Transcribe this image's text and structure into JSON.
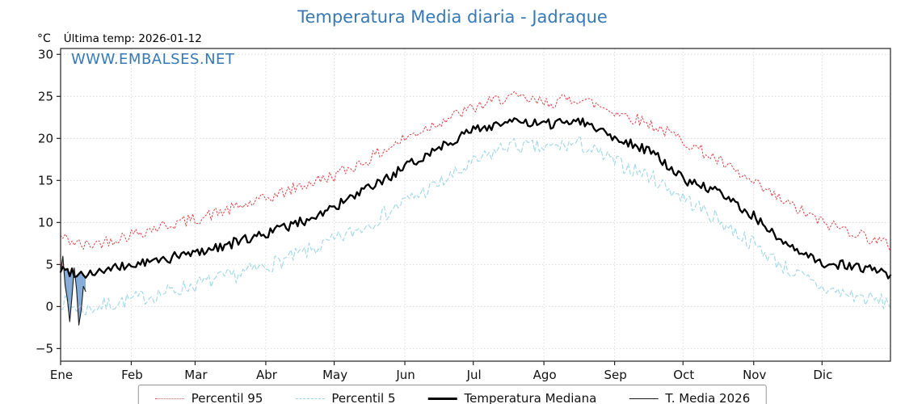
{
  "title": "Temperatura Media diaria - Jadraque",
  "subtitle": {
    "unit": "°C",
    "last_temp": "Última temp: 2026-01-12"
  },
  "watermark": "WWW.EMBALSES.NET",
  "colors": {
    "title": "#3878b4",
    "watermark": "#3878b4",
    "p95": "#e1484d",
    "p5": "#a6d9e8",
    "median": "#000000",
    "t2026": "#1a1a1a",
    "fill_above": "#cc4444",
    "fill_below": "#5b8fc9",
    "grid": "#dcdcdc",
    "axis": "#222222"
  },
  "legend": {
    "items": [
      {
        "label": "Percentil 95",
        "style": "dotted",
        "color": "#e1484d"
      },
      {
        "label": "Percentil 5",
        "style": "dashed",
        "color": "#a6d9e8"
      },
      {
        "label": "Temperatura Mediana",
        "style": "solid-thick",
        "color": "#000000"
      },
      {
        "label": "T. Media 2026",
        "style": "solid-thin",
        "color": "#1a1a1a"
      }
    ]
  },
  "chart_data": {
    "type": "line",
    "title": "Temperatura Media diaria - Jadraque",
    "xlabel": "",
    "ylabel": "°C",
    "x_axis": "day_of_year",
    "days_total": 365,
    "grid": true,
    "legend_position": "bottom",
    "months": [
      "Ene",
      "Feb",
      "Mar",
      "Abr",
      "May",
      "Jun",
      "Jul",
      "Ago",
      "Sep",
      "Oct",
      "Nov",
      "Dic"
    ],
    "month_start_days": [
      0,
      31,
      59,
      90,
      120,
      151,
      181,
      212,
      243,
      273,
      304,
      334
    ],
    "y_ticks": [
      30,
      25,
      20,
      15,
      10,
      5,
      0,
      -5
    ],
    "y_tick_labels": [
      "30",
      "25",
      "20",
      "15",
      "10",
      "5",
      "0",
      "−5"
    ],
    "ylim": [
      -6.5,
      30.7
    ],
    "series": [
      {
        "id": "p95",
        "name": "Percentil 95",
        "style": "dotted",
        "color": "#e1484d",
        "noise": 0.75,
        "seed": 42,
        "anchor_days": [
          0,
          10,
          20,
          31,
          45,
          59,
          75,
          90,
          105,
          120,
          135,
          151,
          166,
          181,
          196,
          212,
          227,
          243,
          258,
          273,
          288,
          304,
          319,
          334,
          349,
          364
        ],
        "anchor_values": [
          8.3,
          7.2,
          7.8,
          8.6,
          9.6,
          10.4,
          11.6,
          12.8,
          14.3,
          15.6,
          17.5,
          20.0,
          22.0,
          23.6,
          25.0,
          24.2,
          24.8,
          23.2,
          21.8,
          19.8,
          17.4,
          14.6,
          12.2,
          10.0,
          8.8,
          7.2
        ]
      },
      {
        "id": "p5",
        "name": "Percentil 5",
        "style": "dashed",
        "color": "#a6d9e8",
        "noise": 0.95,
        "seed": 7,
        "anchor_days": [
          0,
          10,
          20,
          31,
          45,
          59,
          75,
          90,
          105,
          120,
          135,
          151,
          166,
          181,
          196,
          212,
          227,
          243,
          258,
          273,
          288,
          304,
          319,
          334,
          349,
          364
        ],
        "anchor_values": [
          0.6,
          -0.4,
          0.2,
          0.8,
          1.6,
          2.6,
          3.6,
          4.8,
          6.2,
          7.8,
          9.8,
          12.5,
          14.6,
          17.0,
          19.2,
          18.8,
          19.4,
          17.2,
          15.6,
          13.0,
          10.4,
          7.4,
          4.4,
          2.2,
          1.2,
          0.4
        ]
      },
      {
        "id": "median",
        "name": "Temperatura Mediana",
        "style": "solid",
        "color": "#000000",
        "noise": 0.6,
        "seed": 99,
        "anchor_days": [
          0,
          10,
          20,
          31,
          45,
          59,
          75,
          90,
          105,
          120,
          135,
          151,
          166,
          181,
          196,
          212,
          227,
          243,
          258,
          273,
          288,
          304,
          319,
          334,
          349,
          364
        ],
        "anchor_values": [
          4.4,
          3.9,
          4.3,
          4.9,
          5.6,
          6.4,
          7.5,
          8.7,
          10.0,
          11.8,
          14.0,
          16.5,
          19.0,
          21.0,
          22.0,
          21.6,
          22.3,
          20.2,
          18.6,
          15.2,
          13.6,
          10.8,
          7.0,
          5.2,
          4.8,
          3.8
        ]
      },
      {
        "id": "t2026",
        "name": "T. Media 2026",
        "style": "solid-thin",
        "color": "#1a1a1a",
        "days": [
          0,
          1,
          2,
          3,
          4,
          5,
          6,
          7,
          8,
          9,
          10,
          11
        ],
        "values": [
          4.2,
          6.0,
          2.5,
          0.8,
          -1.8,
          1.2,
          4.6,
          2.0,
          -2.2,
          -0.5,
          2.4,
          1.8
        ]
      }
    ]
  }
}
